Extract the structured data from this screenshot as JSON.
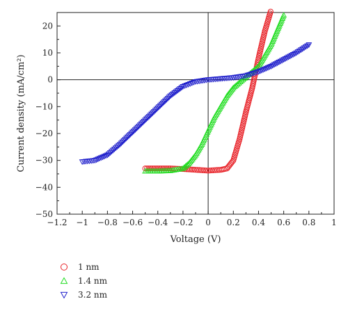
{
  "chart_data": {
    "type": "scatter",
    "title": "",
    "xlabel": "Voltage (V)",
    "ylabel": "Current density (mA/cm²)",
    "xlim": [
      -1.2,
      1
    ],
    "ylim": [
      -50,
      25
    ],
    "xticks": [
      -1.2,
      -1,
      -0.8,
      -0.6,
      -0.4,
      -0.2,
      0,
      0.2,
      0.4,
      0.6,
      0.8,
      1
    ],
    "xtick_labels": [
      "−1.2",
      "−1",
      "−0.8",
      "−0.6",
      "−0.4",
      "−0.2",
      "0",
      "0.2",
      "0.4",
      "0.6",
      "0.8",
      "1"
    ],
    "yticks": [
      -50,
      -40,
      -30,
      -20,
      -10,
      0,
      10,
      20
    ],
    "ytick_labels": [
      "−50",
      "−40",
      "−30",
      "−20",
      "−10",
      "0",
      "10",
      "20"
    ],
    "grid": false,
    "legend_position": "below",
    "series": [
      {
        "name": "1 nm",
        "marker": "circle",
        "color": "#e8242a",
        "x": [
          -0.5,
          -0.4,
          -0.3,
          -0.2,
          -0.1,
          0.0,
          0.1,
          0.15,
          0.2,
          0.25,
          0.3,
          0.35,
          0.4,
          0.45,
          0.5
        ],
        "y": [
          -33,
          -33,
          -33,
          -33.2,
          -33.5,
          -33.8,
          -33.5,
          -33,
          -30,
          -22,
          -12,
          -3,
          8,
          18,
          26
        ]
      },
      {
        "name": "1.4 nm",
        "marker": "triangle-up",
        "color": "#22dd22",
        "x": [
          -0.5,
          -0.4,
          -0.3,
          -0.2,
          -0.15,
          -0.1,
          -0.05,
          0.0,
          0.05,
          0.1,
          0.15,
          0.2,
          0.3,
          0.4,
          0.5,
          0.6
        ],
        "y": [
          -34,
          -34,
          -33.8,
          -33,
          -31,
          -28,
          -24,
          -19,
          -14,
          -10,
          -6,
          -3,
          1,
          5,
          13,
          24
        ]
      },
      {
        "name": "3.2 nm",
        "marker": "triangle-down",
        "color": "#2222cc",
        "x": [
          -1.0,
          -0.9,
          -0.8,
          -0.7,
          -0.6,
          -0.5,
          -0.4,
          -0.3,
          -0.2,
          -0.1,
          0.0,
          0.1,
          0.2,
          0.3,
          0.4,
          0.5,
          0.6,
          0.7,
          0.8
        ],
        "y": [
          -30.5,
          -30,
          -28,
          -24,
          -19.5,
          -15,
          -10.5,
          -6,
          -2.5,
          -0.7,
          0,
          0.4,
          0.8,
          1.5,
          3,
          5,
          7.5,
          10,
          13
        ]
      }
    ]
  }
}
